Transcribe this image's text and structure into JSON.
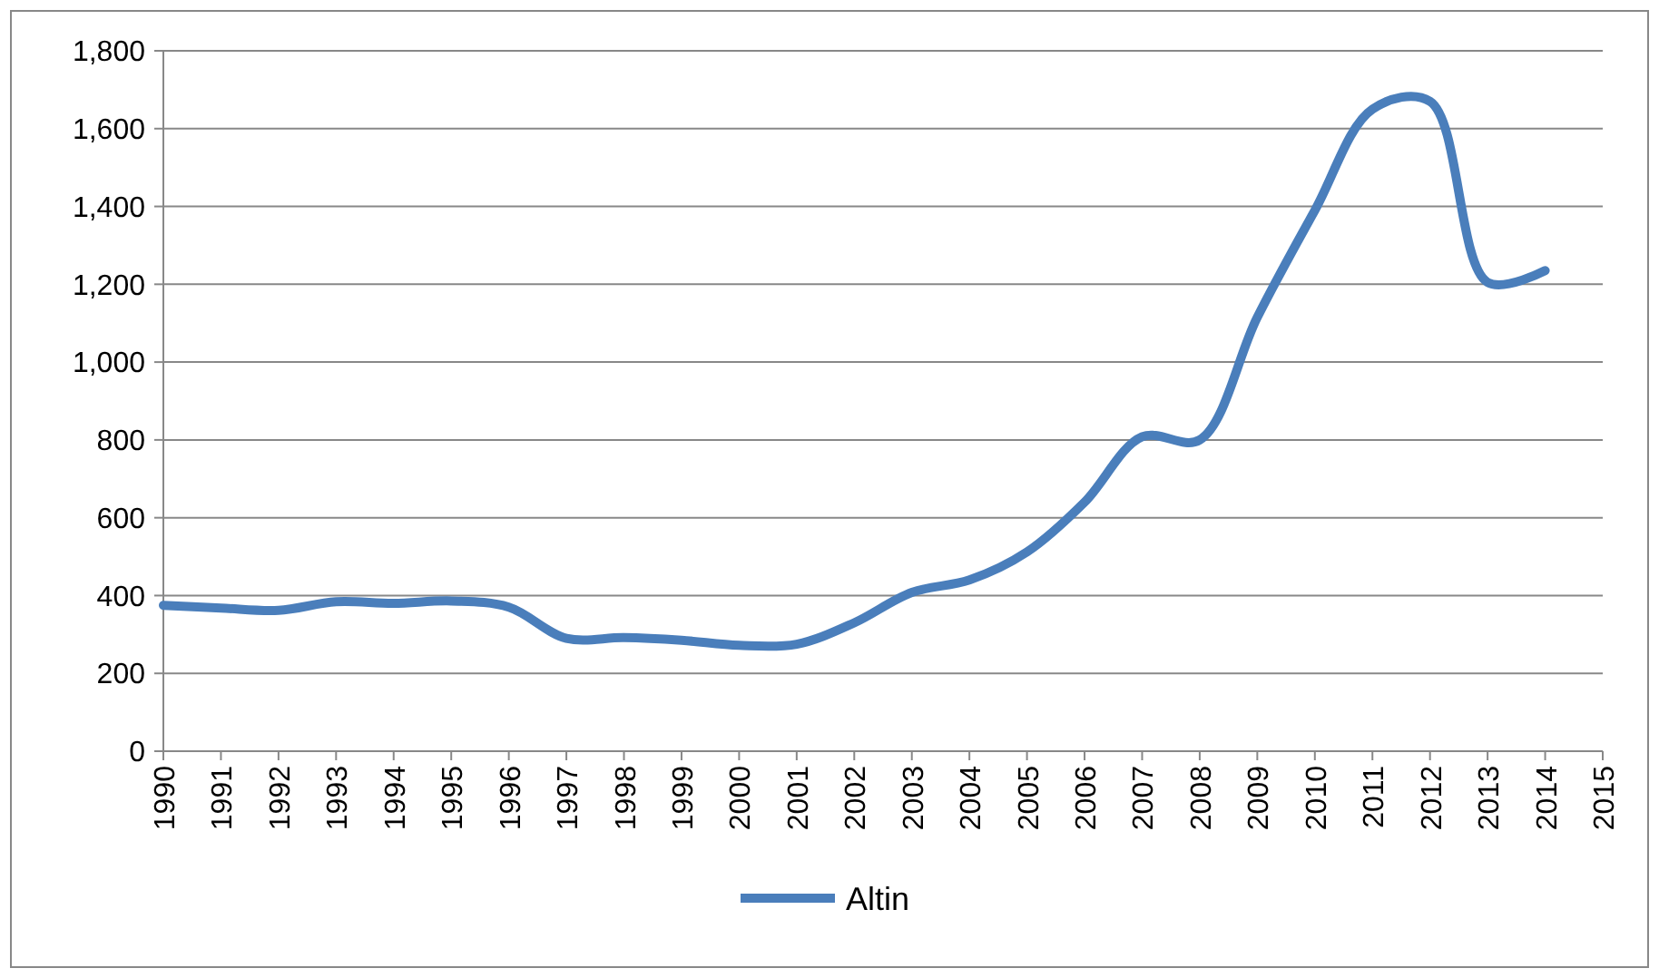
{
  "chart_data": {
    "type": "line",
    "categories": [
      "1990",
      "1991",
      "1992",
      "1993",
      "1994",
      "1995",
      "1996",
      "1997",
      "1998",
      "1999",
      "2000",
      "2001",
      "2002",
      "2003",
      "2004",
      "2005",
      "2006",
      "2007",
      "2008",
      "2009",
      "2010",
      "2011",
      "2012",
      "2013",
      "2014",
      "2015"
    ],
    "series": [
      {
        "name": "Altin",
        "color": "#4a7ebb",
        "values": [
          375,
          368,
          362,
          384,
          380,
          386,
          370,
          290,
          292,
          285,
          272,
          275,
          330,
          408,
          440,
          512,
          640,
          808,
          800,
          1115,
          1390,
          1650,
          1670,
          1205,
          1235,
          null
        ]
      }
    ],
    "ylim": [
      0,
      1800
    ],
    "yticks": [
      {
        "value": 0,
        "label": "0"
      },
      {
        "value": 200,
        "label": "200"
      },
      {
        "value": 400,
        "label": "400"
      },
      {
        "value": 600,
        "label": "600"
      },
      {
        "value": 800,
        "label": "800"
      },
      {
        "value": 1000,
        "label": "1,000"
      },
      {
        "value": 1200,
        "label": "1,200"
      },
      {
        "value": 1400,
        "label": "1,400"
      },
      {
        "value": 1600,
        "label": "1,600"
      },
      {
        "value": 1800,
        "label": "1,800"
      }
    ],
    "grid": "y",
    "legend": "bottom",
    "marker": "none",
    "line_style": "solid"
  }
}
